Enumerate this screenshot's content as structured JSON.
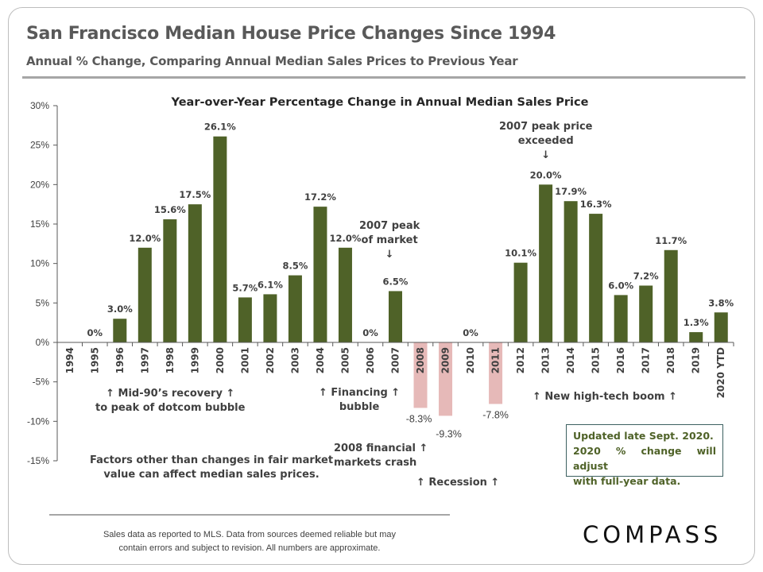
{
  "header": {
    "title": "San Francisco Median House Price Changes Since 1994",
    "subtitle": "Annual % Change, Comparing Annual Median Sales Prices to Previous Year"
  },
  "chart_data": {
    "type": "bar",
    "title": "Year-over-Year Percentage Change in Annual Median Sales Price",
    "categories": [
      "1994",
      "1995",
      "1996",
      "1997",
      "1998",
      "1999",
      "2000",
      "2001",
      "2002",
      "2003",
      "2004",
      "2005",
      "2006",
      "2007",
      "2008",
      "2009",
      "2010",
      "2011",
      "2012",
      "2013",
      "2014",
      "2015",
      "2016",
      "2017",
      "2018",
      "2019",
      "2020 YTD"
    ],
    "values": [
      null,
      0,
      3.0,
      12.0,
      15.6,
      17.5,
      26.1,
      5.7,
      6.1,
      8.5,
      17.2,
      12.0,
      0,
      6.5,
      -8.3,
      -9.3,
      0,
      -7.8,
      10.1,
      20.0,
      17.9,
      16.3,
      6.0,
      7.2,
      11.7,
      1.3,
      3.8
    ],
    "data_labels": [
      "",
      "0%",
      "3.0%",
      "12.0%",
      "15.6%",
      "17.5%",
      "26.1%",
      "5.7%",
      "6.1%",
      "8.5%",
      "17.2%",
      "12.0%",
      "0%",
      "6.5%",
      "-8.3%",
      "-9.3%",
      "0%",
      "-7.8%",
      "10.1%",
      "20.0%",
      "17.9%",
      "16.3%",
      "6.0%",
      "7.2%",
      "11.7%",
      "1.3%",
      "3.8%"
    ],
    "ylim": [
      -15,
      30
    ],
    "yticks": [
      "-15%",
      "-10%",
      "-5%",
      "0%",
      "5%",
      "10%",
      "15%",
      "20%",
      "25%",
      "30%"
    ],
    "grid": false,
    "colors": {
      "positive": "#4f6228",
      "negative": "#e6b9b8"
    }
  },
  "annotations": {
    "peak_2007": [
      "2007 peak",
      "of market",
      "↓"
    ],
    "peak_exceeded": [
      "2007 peak price",
      "exceeded",
      "↓"
    ],
    "mid90s": [
      "↑  Mid-90’s recovery ↑",
      "to peak of dotcom bubble"
    ],
    "financing": [
      "↑ Financing ↑",
      "bubble"
    ],
    "crash": [
      "2008 financial ↑",
      "markets crash"
    ],
    "recession": "↑   Recession   ↑",
    "hightech": "↑   New high-tech boom   ↑",
    "factors": [
      "Factors other than changes in fair market",
      "value can affect median sales prices."
    ],
    "updated": [
      "Updated late Sept. 2020.",
      "2020 % change will adjust",
      "with full-year data."
    ]
  },
  "footer": {
    "disclaimer": [
      "Sales data as reported to MLS. Data from sources deemed reliable but may",
      "contain errors and subject to revision. All numbers are approximate."
    ],
    "logo": "COMPASS"
  }
}
